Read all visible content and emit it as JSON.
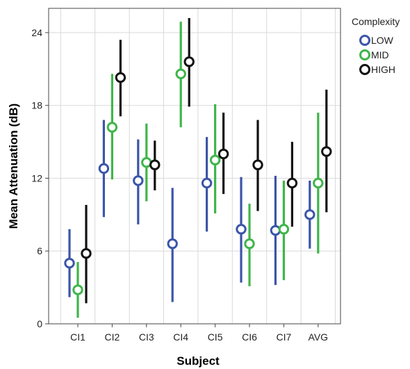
{
  "chart_data": {
    "type": "scatter",
    "xlabel": "Subject",
    "ylabel": "Mean Attenuation (dB)",
    "categories": [
      "CI1",
      "CI2",
      "CI3",
      "CI4",
      "CI5",
      "CI6",
      "CI7",
      "AVG"
    ],
    "ylim": [
      0,
      26
    ],
    "yticks": [
      0,
      6,
      12,
      18,
      24
    ],
    "grid": true,
    "legend": {
      "title": "Complexity",
      "position": "right"
    },
    "series": [
      {
        "name": "LOW",
        "color": "#3b55a8",
        "mean": [
          5.0,
          12.8,
          11.8,
          6.6,
          11.6,
          7.8,
          7.7,
          9.0
        ],
        "lower": [
          2.2,
          8.8,
          8.2,
          1.8,
          7.6,
          3.4,
          3.2,
          6.2
        ],
        "upper": [
          7.8,
          16.8,
          15.2,
          11.2,
          15.4,
          12.1,
          12.2,
          11.8
        ]
      },
      {
        "name": "MID",
        "color": "#3fb54a",
        "mean": [
          2.8,
          16.2,
          13.3,
          20.6,
          13.5,
          6.6,
          7.8,
          11.6
        ],
        "lower": [
          0.5,
          11.9,
          10.1,
          16.2,
          9.1,
          3.1,
          3.6,
          5.8
        ],
        "upper": [
          5.1,
          20.6,
          16.5,
          24.9,
          18.1,
          9.9,
          11.8,
          17.4
        ]
      },
      {
        "name": "HIGH",
        "color": "#111111",
        "mean": [
          5.8,
          20.3,
          13.1,
          21.6,
          14.0,
          13.1,
          11.6,
          14.2
        ],
        "lower": [
          1.7,
          17.1,
          11.0,
          17.9,
          10.7,
          9.3,
          8.0,
          9.2
        ],
        "upper": [
          9.8,
          23.4,
          15.1,
          25.2,
          17.4,
          16.8,
          15.0,
          19.3
        ]
      }
    ]
  }
}
